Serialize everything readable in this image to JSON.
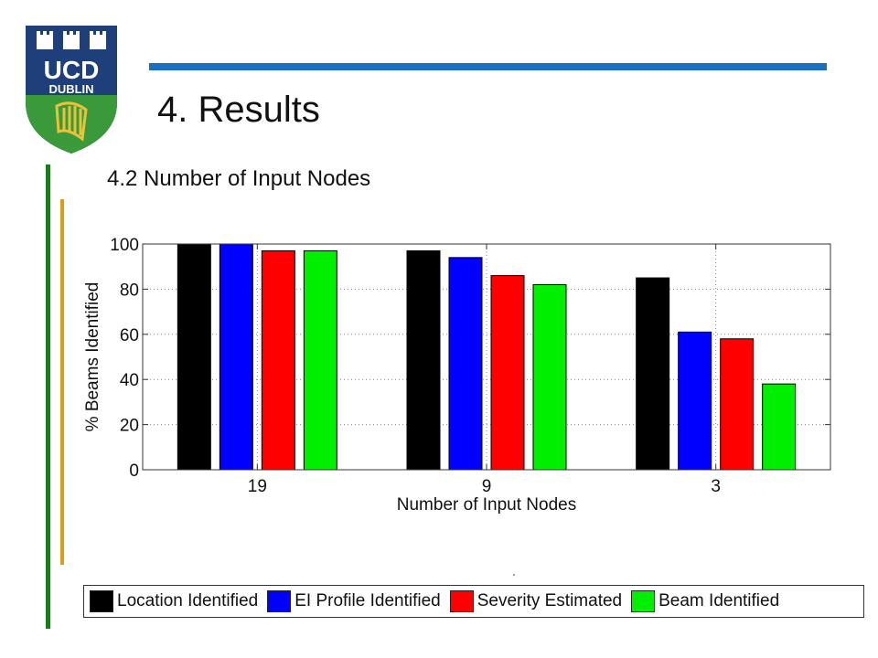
{
  "logo": {
    "line1": "UCD",
    "line2": "DUBLIN",
    "colors": {
      "shield_blue": "#1f3f7a",
      "shield_green": "#3a9a3a",
      "harp": "#e8c23a"
    }
  },
  "slide": {
    "title": "4. Results",
    "subtitle": "4.2 Number of Input Nodes"
  },
  "accent_colors": {
    "top_rule": "#1a6fc0",
    "left_green": "#1e7a1e",
    "left_gold": "#d4a017"
  },
  "chart_data": {
    "type": "bar",
    "categories": [
      "19",
      "9",
      "3"
    ],
    "series": [
      {
        "name": "Location Identified",
        "color": "#000000",
        "values": [
          100,
          97,
          85
        ]
      },
      {
        "name": "EI Profile Identified",
        "color": "#0000ff",
        "values": [
          100,
          94,
          61
        ]
      },
      {
        "name": "Severity Estimated",
        "color": "#ff0000",
        "values": [
          97,
          86,
          58
        ]
      },
      {
        "name": "Beam Identified",
        "color": "#00ee00",
        "values": [
          97,
          82,
          38
        ]
      }
    ],
    "xlabel": "Number of Input Nodes",
    "ylabel": "% Beams Identified",
    "ylim": [
      0,
      100
    ],
    "yticks": [
      0,
      20,
      40,
      60,
      80,
      100
    ],
    "grid": true,
    "legend_position": "bottom"
  }
}
